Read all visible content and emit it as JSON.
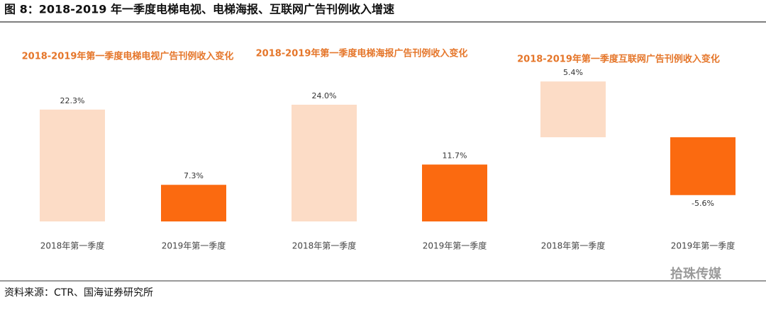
{
  "title": "图 8：2018-2019 年一季度电梯电视、电梯海报、互联网广告刊例收入增速",
  "source": "资料来源：CTR、国海证券研究所",
  "watermark": "拾珠传媒",
  "chart_data": [
    {
      "type": "bar",
      "title": "2018-2019年第一季度电梯电视广告刊例收入变化",
      "categories": [
        "2018年第一季度",
        "2019年第一季度"
      ],
      "values": [
        22.3,
        7.3
      ],
      "value_labels": [
        "22.3%",
        "7.3%"
      ],
      "colors": [
        "#fcdcc6",
        "#fb6a10"
      ]
    },
    {
      "type": "bar",
      "title": "2018-2019年第一季度电梯海报广告刊例收入变化",
      "categories": [
        "2018年第一季度",
        "2019年第一季度"
      ],
      "values": [
        24.0,
        11.7
      ],
      "value_labels": [
        "24.0%",
        "11.7%"
      ],
      "colors": [
        "#fcdcc6",
        "#fb6a10"
      ]
    },
    {
      "type": "bar",
      "title": "2018-2019年第一季度互联网广告刊例收入变化",
      "categories": [
        "2018年第一季度",
        "2019年第一季度"
      ],
      "values": [
        5.4,
        -5.6
      ],
      "value_labels": [
        "5.4%",
        "-5.6%"
      ],
      "colors": [
        "#fcdcc6",
        "#fb6a10"
      ]
    }
  ]
}
